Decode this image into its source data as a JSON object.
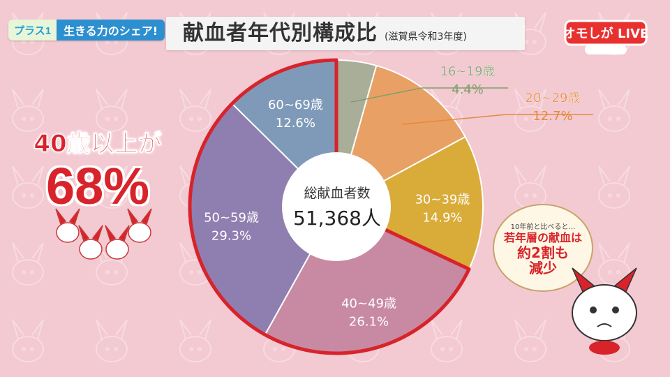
{
  "header": {
    "show_logo_text": "プラス1",
    "segment_tag": "生きる力のシェア!",
    "title": "献血者年代別構成比",
    "subtitle": "(滋賀県令和3年度)",
    "program_logo": "オモしが LIVE"
  },
  "center": {
    "label": "総献血者数",
    "value": "51,368人"
  },
  "callout": {
    "line1": "40歳以上が",
    "line2": "68%"
  },
  "note": {
    "small": "10年前と比べると…",
    "line1": "若年層の献血は",
    "line2": "約2割も",
    "line3": "減少"
  },
  "colors": {
    "background": "#f3c9d2",
    "highlight": "#d8232a"
  },
  "chart_data": {
    "type": "pie",
    "title": "献血者年代別構成比",
    "subtitle": "(滋賀県令和3年度)",
    "total_label": "総献血者数",
    "total_value": "51,368人",
    "slices": [
      {
        "label": "16~19歳",
        "value": 4.4,
        "value_text": "4.4%",
        "color": "#a9ae98",
        "label_color": "#7fa06b",
        "label_pos": "outside"
      },
      {
        "label": "20~29歳",
        "value": 12.7,
        "value_text": "12.7%",
        "color": "#e9a064",
        "label_color": "#e48a3d",
        "label_pos": "outside"
      },
      {
        "label": "30~39歳",
        "value": 14.9,
        "value_text": "14.9%",
        "color": "#d9ac3a",
        "label_color": "#ffffff",
        "label_pos": "inside"
      },
      {
        "label": "40~49歳",
        "value": 26.1,
        "value_text": "26.1%",
        "color": "#c889a2",
        "label_color": "#ffffff",
        "label_pos": "inside"
      },
      {
        "label": "50~59歳",
        "value": 29.3,
        "value_text": "29.3%",
        "color": "#8f7fb0",
        "label_color": "#ffffff",
        "label_pos": "inside"
      },
      {
        "label": "60~69歳",
        "value": 12.6,
        "value_text": "12.6%",
        "color": "#7f9ab8",
        "label_color": "#ffffff",
        "label_pos": "inside"
      }
    ],
    "highlighted_group": [
      "40~49歳",
      "50~59歳",
      "60~69歳"
    ]
  }
}
